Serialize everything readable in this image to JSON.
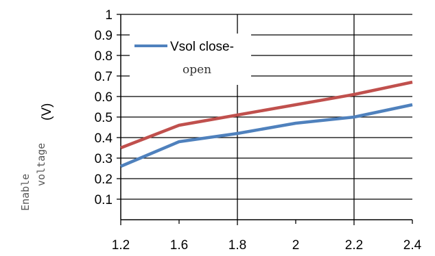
{
  "chart_data": {
    "type": "line",
    "x": [
      1.2,
      1.6,
      1.8,
      2,
      2.2,
      2.4
    ],
    "x_tick_labels": [
      "1.2",
      "1.6",
      "1.8",
      "2",
      "2.2",
      "2.4"
    ],
    "y_tick_labels": [
      "1",
      "0.9",
      "0.8",
      "0.7",
      "0.6",
      "0.5",
      "0.4",
      "0.3",
      "0.2",
      "0.1"
    ],
    "ylim": [
      0,
      1
    ],
    "ylabel_text": "Enable voltage",
    "ylabel_unit": "(V)",
    "grid": true,
    "legend_position": "top-left",
    "series": [
      {
        "name": "Vsol close-open",
        "color": "#4f81bd",
        "values": [
          0.26,
          0.38,
          0.42,
          0.47,
          0.5,
          0.56
        ]
      },
      {
        "name": "",
        "color": "#c0504d",
        "values": [
          0.35,
          0.46,
          0.51,
          0.56,
          0.61,
          0.67
        ]
      }
    ],
    "legend_line1": "Vsol close-",
    "legend_line2": "open"
  }
}
